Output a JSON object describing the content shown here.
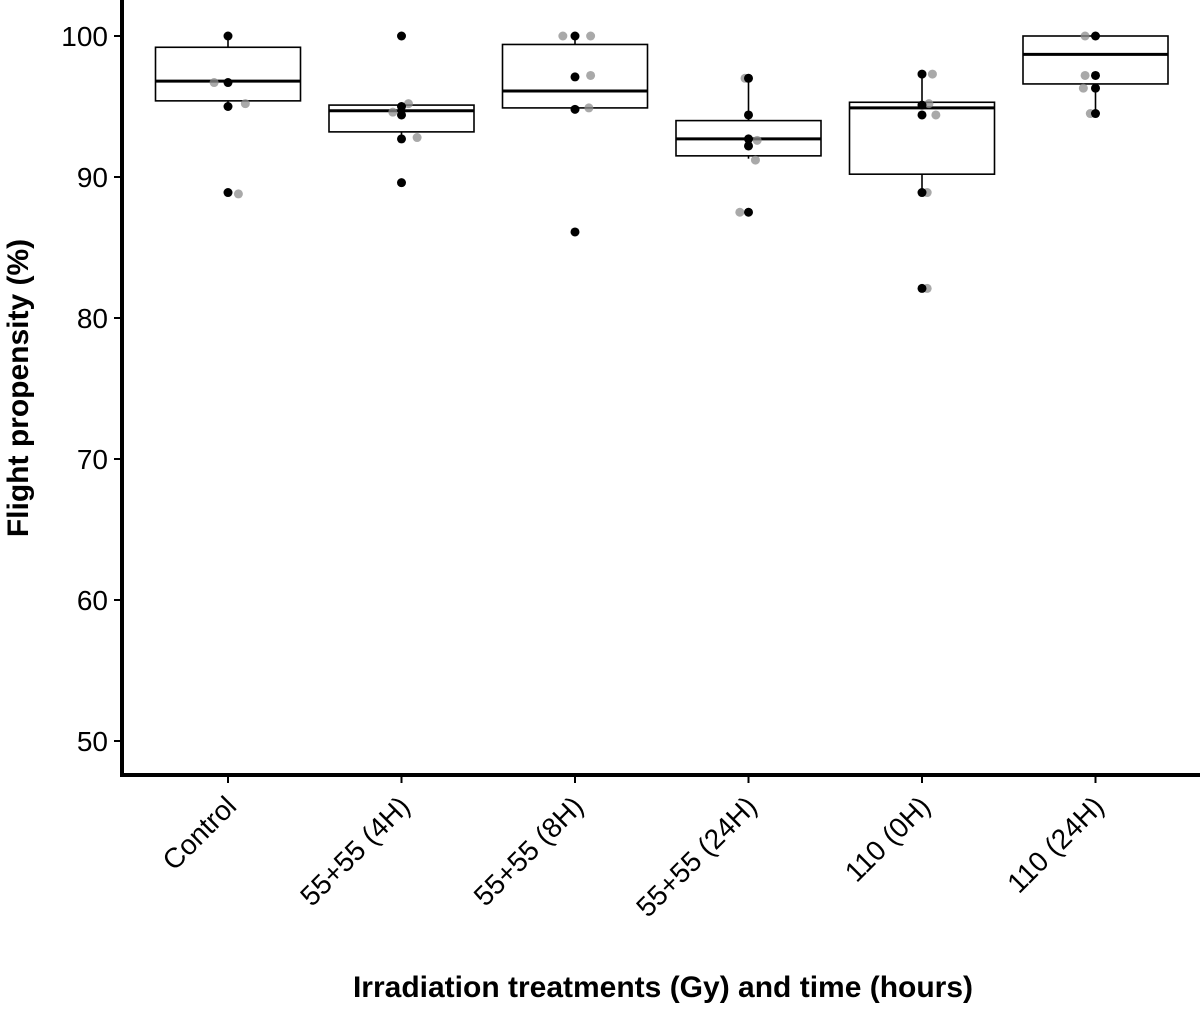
{
  "chart_data": {
    "type": "box",
    "xlabel": "Irradiation treatments (Gy) and time (hours)",
    "ylabel": "Flight propensity (%)",
    "ylim": [
      48.5,
      102.5
    ],
    "yticks": [
      50,
      60,
      70,
      80,
      90,
      100
    ],
    "grid": false,
    "categories": [
      "Control",
      "55+55 (4H)",
      "55+55 (8H)",
      "55+55 (24H)",
      "110 (0H)",
      "110 (24H)"
    ],
    "boxes": [
      {
        "category": "Control",
        "min": 95.0,
        "q1": 95.4,
        "median": 96.8,
        "q3": 99.2,
        "max": 100.0
      },
      {
        "category": "55+55 (4H)",
        "min": 93.0,
        "q1": 93.2,
        "median": 94.7,
        "q3": 95.1,
        "max": 95.2
      },
      {
        "category": "55+55 (8H)",
        "min": 94.8,
        "q1": 94.9,
        "median": 96.1,
        "q3": 99.4,
        "max": 100.0
      },
      {
        "category": "55+55 (24H)",
        "min": 91.3,
        "q1": 91.5,
        "median": 92.7,
        "q3": 94.0,
        "max": 97.0
      },
      {
        "category": "110 (0H)",
        "min": 89.0,
        "q1": 90.2,
        "median": 94.9,
        "q3": 95.3,
        "max": 97.3
      },
      {
        "category": "110 (24H)",
        "min": 94.5,
        "q1": 96.6,
        "median": 98.7,
        "q3": 100.0,
        "max": 100.0
      }
    ],
    "points_black": [
      [
        {
          "x": 0,
          "y": 100.0
        },
        {
          "x": 0,
          "y": 96.7
        },
        {
          "x": 0,
          "y": 95.0
        },
        {
          "x": 0,
          "y": 88.9
        }
      ],
      [
        {
          "x": 0,
          "y": 100.0
        },
        {
          "x": 0,
          "y": 95.0
        },
        {
          "x": 0,
          "y": 94.4
        },
        {
          "x": 0,
          "y": 92.7
        },
        {
          "x": 0,
          "y": 89.6
        }
      ],
      [
        {
          "x": 0,
          "y": 100.0
        },
        {
          "x": 0,
          "y": 97.1
        },
        {
          "x": 0,
          "y": 94.8
        },
        {
          "x": 0,
          "y": 86.1
        }
      ],
      [
        {
          "x": 0,
          "y": 97.0
        },
        {
          "x": 0,
          "y": 94.4
        },
        {
          "x": 0,
          "y": 92.7
        },
        {
          "x": 0,
          "y": 92.2
        },
        {
          "x": 0,
          "y": 87.5
        }
      ],
      [
        {
          "x": 0,
          "y": 97.3
        },
        {
          "x": 0,
          "y": 95.1
        },
        {
          "x": 0,
          "y": 94.4
        },
        {
          "x": 0,
          "y": 88.9
        },
        {
          "x": 0,
          "y": 82.1
        }
      ],
      [
        {
          "x": 0,
          "y": 100.0
        },
        {
          "x": 0,
          "y": 97.2
        },
        {
          "x": 0,
          "y": 96.3
        },
        {
          "x": 0,
          "y": 94.5
        }
      ]
    ],
    "points_grey": [
      [
        {
          "x": -0.08,
          "y": 96.7
        },
        {
          "x": 0.1,
          "y": 95.2
        },
        {
          "x": 0.06,
          "y": 88.8
        }
      ],
      [
        {
          "x": 0.04,
          "y": 95.2
        },
        {
          "x": -0.05,
          "y": 94.6
        },
        {
          "x": 0.09,
          "y": 92.8
        }
      ],
      [
        {
          "x": -0.07,
          "y": 100.0
        },
        {
          "x": 0.09,
          "y": 100.0
        },
        {
          "x": 0.09,
          "y": 97.2
        },
        {
          "x": 0.08,
          "y": 94.9
        }
      ],
      [
        {
          "x": -0.02,
          "y": 97.0
        },
        {
          "x": 0.05,
          "y": 92.6
        },
        {
          "x": 0.04,
          "y": 91.2
        },
        {
          "x": -0.05,
          "y": 87.5
        }
      ],
      [
        {
          "x": 0.06,
          "y": 97.3
        },
        {
          "x": 0.04,
          "y": 95.2
        },
        {
          "x": 0.08,
          "y": 94.4
        },
        {
          "x": 0.03,
          "y": 88.9
        },
        {
          "x": 0.03,
          "y": 82.1
        }
      ],
      [
        {
          "x": -0.06,
          "y": 100.0
        },
        {
          "x": -0.06,
          "y": 97.2
        },
        {
          "x": -0.07,
          "y": 96.3
        },
        {
          "x": -0.03,
          "y": 94.5
        }
      ]
    ],
    "colors": {
      "box_outline": "#000000",
      "point_black": "#000000",
      "point_grey": "#8c8c8c",
      "axis": "#000000",
      "background": "#ffffff"
    }
  }
}
